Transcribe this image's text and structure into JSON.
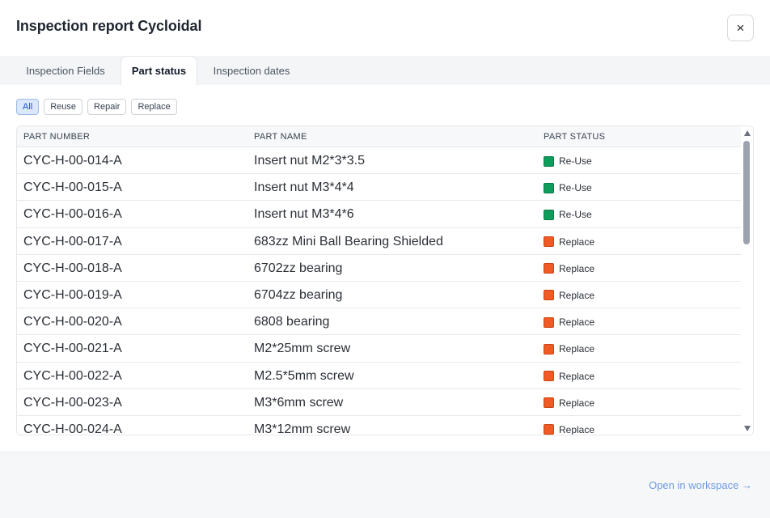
{
  "dialog": {
    "title": "Inspection report Cycloidal",
    "close_label": "×"
  },
  "tabs": [
    {
      "label": "Inspection Fields",
      "active": false
    },
    {
      "label": "Part status",
      "active": true
    },
    {
      "label": "Inspection dates",
      "active": false
    }
  ],
  "filters": [
    {
      "label": "All",
      "active": true
    },
    {
      "label": "Reuse",
      "active": false
    },
    {
      "label": "Repair",
      "active": false
    },
    {
      "label": "Replace",
      "active": false
    }
  ],
  "table": {
    "columns": [
      "PART NUMBER",
      "PART NAME",
      "PART STATUS"
    ],
    "rows": [
      {
        "part_number": "CYC-H-00-014-A",
        "part_name": "Insert nut M2*3*3.5",
        "status": "Re-Use"
      },
      {
        "part_number": "CYC-H-00-015-A",
        "part_name": "Insert nut M3*4*4",
        "status": "Re-Use"
      },
      {
        "part_number": "CYC-H-00-016-A",
        "part_name": "Insert nut M3*4*6",
        "status": "Re-Use"
      },
      {
        "part_number": "CYC-H-00-017-A",
        "part_name": "683zz Mini Ball Bearing Shielded",
        "status": "Replace"
      },
      {
        "part_number": "CYC-H-00-018-A",
        "part_name": "6702zz bearing",
        "status": "Replace"
      },
      {
        "part_number": "CYC-H-00-019-A",
        "part_name": "6704zz bearing",
        "status": "Replace"
      },
      {
        "part_number": "CYC-H-00-020-A",
        "part_name": "6808 bearing",
        "status": "Replace"
      },
      {
        "part_number": "CYC-H-00-021-A",
        "part_name": "M2*25mm screw",
        "status": "Replace"
      },
      {
        "part_number": "CYC-H-00-022-A",
        "part_name": "M2.5*5mm screw",
        "status": "Replace"
      },
      {
        "part_number": "CYC-H-00-023-A",
        "part_name": "M3*6mm screw",
        "status": "Replace"
      },
      {
        "part_number": "CYC-H-00-024-A",
        "part_name": "M3*12mm screw",
        "status": "Replace"
      }
    ]
  },
  "status_colors": {
    "Re-Use": "#0f9d5c",
    "Replace": "#f05a24"
  },
  "footer": {
    "open_label": "Open in workspace →"
  }
}
